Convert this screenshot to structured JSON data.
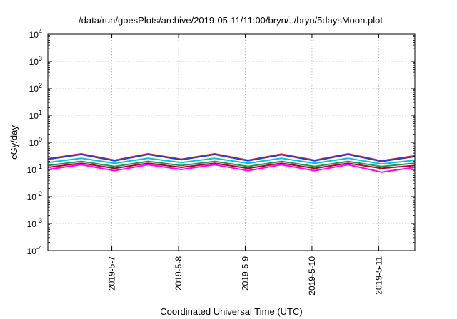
{
  "chart_data": {
    "type": "line",
    "title": "/data/run/goesPlots/archive/2019-05-11/11:00/bryn/../bryn/5daysMoon.plot",
    "xlabel": "Coordinated Universal Time (UTC)",
    "ylabel": "cGy/day",
    "yscale": "log",
    "ylim": [
      0.0001,
      10000
    ],
    "yticks": [
      {
        "base": "10",
        "exp": "-4"
      },
      {
        "base": "10",
        "exp": "-3"
      },
      {
        "base": "10",
        "exp": "-2"
      },
      {
        "base": "10",
        "exp": "-1"
      },
      {
        "base": "10",
        "exp": "0"
      },
      {
        "base": "10",
        "exp": "1"
      },
      {
        "base": "10",
        "exp": "2"
      },
      {
        "base": "10",
        "exp": "3"
      },
      {
        "base": "10",
        "exp": "4"
      }
    ],
    "xlim_days": [
      "2019-05-06 01:00",
      "2019-05-11 13:00"
    ],
    "xticks": [
      "2019-5-7",
      "2019-5-8",
      "2019-5-9",
      "2019-5-10",
      "2019-5-11"
    ],
    "grid": true,
    "x": [
      "2019-05-06 01:00",
      "2019-05-06 13:00",
      "2019-05-07 01:00",
      "2019-05-07 13:00",
      "2019-05-08 01:00",
      "2019-05-08 13:00",
      "2019-05-09 01:00",
      "2019-05-09 13:00",
      "2019-05-10 01:00",
      "2019-05-10 13:00",
      "2019-05-11 01:00",
      "2019-05-11 13:00"
    ],
    "series": [
      {
        "color": "#ff00ff",
        "values": [
          0.1,
          0.15,
          0.09,
          0.15,
          0.1,
          0.15,
          0.09,
          0.15,
          0.09,
          0.15,
          0.08,
          0.12
        ]
      },
      {
        "color": "#b2002f",
        "values": [
          0.12,
          0.17,
          0.11,
          0.17,
          0.12,
          0.17,
          0.11,
          0.17,
          0.11,
          0.17,
          0.11,
          0.14
        ]
      },
      {
        "color": "#2e8b57",
        "values": [
          0.14,
          0.2,
          0.13,
          0.2,
          0.14,
          0.2,
          0.13,
          0.2,
          0.13,
          0.2,
          0.13,
          0.17
        ]
      },
      {
        "color": "#00c8c8",
        "values": [
          0.18,
          0.26,
          0.17,
          0.26,
          0.18,
          0.26,
          0.17,
          0.26,
          0.17,
          0.26,
          0.16,
          0.22
        ]
      },
      {
        "color": "#e8202a",
        "values": [
          0.25,
          0.38,
          0.22,
          0.38,
          0.24,
          0.38,
          0.22,
          0.37,
          0.22,
          0.38,
          0.21,
          0.32
        ]
      },
      {
        "color": "#2b3bd6",
        "values": [
          0.24,
          0.36,
          0.21,
          0.36,
          0.23,
          0.36,
          0.21,
          0.35,
          0.21,
          0.36,
          0.2,
          0.3
        ]
      }
    ]
  }
}
